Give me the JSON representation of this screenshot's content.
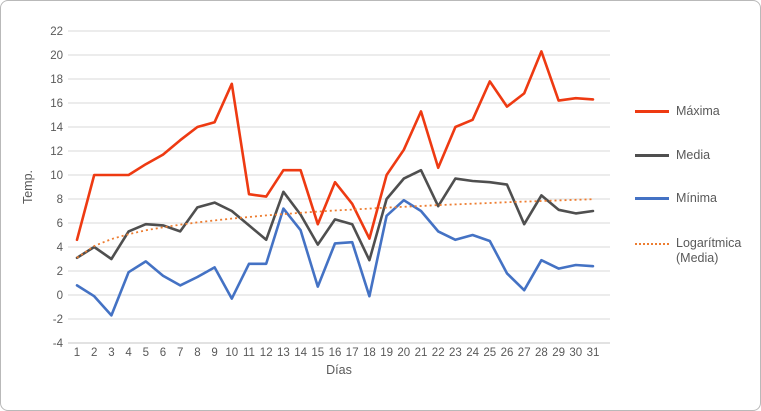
{
  "axes": {
    "y_title": "Temp.",
    "x_title": "Días",
    "y_ticks": [
      22,
      20,
      18,
      16,
      14,
      12,
      10,
      8,
      6,
      4,
      2,
      0,
      -2,
      -4
    ]
  },
  "legend": {
    "items": [
      {
        "label": "Máxima",
        "swatch": "solid",
        "color": "#ee3a12",
        "thickness": 3
      },
      {
        "label": "Media",
        "swatch": "solid",
        "color": "#4f4f4f",
        "thickness": 3
      },
      {
        "label": "Mínima",
        "swatch": "solid",
        "color": "#4472c4",
        "thickness": 3
      },
      {
        "label": "Logarítmica (Media)",
        "swatch": "dotted",
        "color": "#ed7d31",
        "thickness": 2
      }
    ]
  },
  "chart_data": {
    "type": "line",
    "title": "",
    "xlabel": "Días",
    "ylabel": "Temp.",
    "ylim": [
      -4,
      22
    ],
    "y_tick_step": 2,
    "grid": "horizontal",
    "legend_position": "right",
    "categories": [
      1,
      2,
      3,
      4,
      5,
      6,
      7,
      8,
      9,
      10,
      11,
      12,
      13,
      14,
      15,
      16,
      17,
      18,
      19,
      20,
      21,
      22,
      23,
      24,
      25,
      26,
      27,
      28,
      29,
      30,
      31
    ],
    "series": [
      {
        "name": "Máxima",
        "color": "#ee3a12",
        "style": "solid",
        "values": [
          4.6,
          10,
          10,
          10,
          10.9,
          11.7,
          12.9,
          14,
          14.4,
          17.6,
          8.4,
          8.2,
          10.4,
          10.4,
          5.9,
          9.4,
          7.6,
          4.7,
          10,
          12.1,
          15.3,
          10.6,
          14,
          14.6,
          17.8,
          15.7,
          16.8,
          20.3,
          16.2,
          16.4,
          16.3
        ]
      },
      {
        "name": "Media",
        "color": "#4f4f4f",
        "style": "solid",
        "values": [
          3.1,
          4,
          3,
          5.3,
          5.9,
          5.8,
          5.3,
          7.3,
          7.7,
          7,
          5.8,
          4.6,
          8.6,
          6.7,
          4.2,
          6.3,
          5.9,
          2.9,
          8,
          9.7,
          10.4,
          7.4,
          9.7,
          9.5,
          9.4,
          9.2,
          5.9,
          8.3,
          7.1,
          6.8,
          7
        ]
      },
      {
        "name": "Mínima",
        "color": "#4472c4",
        "style": "solid",
        "values": [
          0.8,
          -0.1,
          -1.7,
          1.9,
          2.8,
          1.6,
          0.8,
          1.5,
          2.3,
          -0.3,
          2.6,
          2.6,
          7.2,
          5.4,
          0.7,
          4.3,
          4.4,
          -0.1,
          6.6,
          7.9,
          7,
          5.3,
          4.6,
          5,
          4.5,
          1.8,
          0.4,
          2.9,
          2.2,
          2.5,
          2.4
        ]
      }
    ],
    "trendline": {
      "name": "Logarítmica (Media)",
      "based_on": "Media",
      "color": "#ed7d31",
      "style": "dotted",
      "equation": {
        "form": "a + b*ln(x)",
        "a": 3.1,
        "b": 1.42
      },
      "values": [
        3.1,
        4.08,
        4.66,
        5.07,
        5.39,
        5.64,
        5.86,
        6.05,
        6.22,
        6.37,
        6.5,
        6.63,
        6.74,
        6.85,
        6.95,
        7.04,
        7.12,
        7.2,
        7.28,
        7.35,
        7.42,
        7.49,
        7.55,
        7.61,
        7.67,
        7.73,
        7.78,
        7.83,
        7.88,
        7.93,
        7.98
      ]
    }
  }
}
